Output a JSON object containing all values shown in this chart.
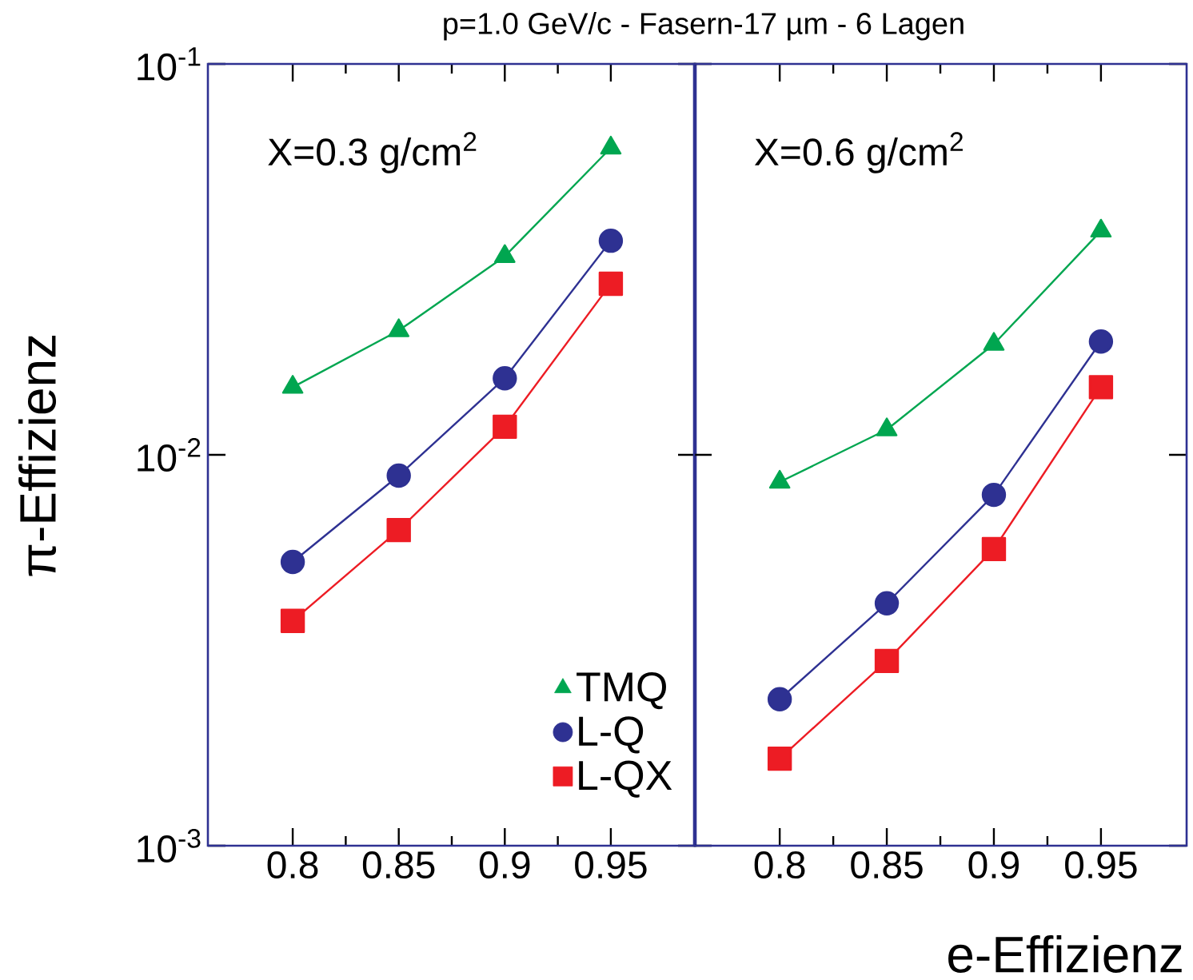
{
  "chart_data": [
    {
      "type": "line",
      "title": "p=1.0 GeV/c - Fasern-17 µm - 6 Lagen",
      "ylabel": "π-Effizienz",
      "annotations": [
        "X=0.3 g/cm$^{2}$"
      ],
      "log": "y",
      "legend": "bottom right",
      "line_style": "solid",
      "xlim": [
        0.76,
        0.99
      ],
      "xticks": [
        0.8,
        0.85,
        0.9,
        0.95
      ],
      "ylim": [
        0.001,
        0.1
      ],
      "yticks": [
        {
          "value": 0.1,
          "label": "10$^{-1}$"
        },
        {
          "value": 0.01,
          "label": "10$^{-2}$"
        },
        {
          "value": 0.001,
          "label": "10$^{-3}$"
        }
      ],
      "x": [
        0.8,
        0.85,
        0.9,
        0.95
      ],
      "series": [
        {
          "name": "TMQ",
          "color": "#00a650",
          "marker": "triangle",
          "values": [
            0.0149,
            0.0208,
            0.0322,
            0.061
          ]
        },
        {
          "name": "L-Q",
          "color": "#2e3192",
          "marker": "circle",
          "values": [
            0.00532,
            0.00885,
            0.0157,
            0.0353
          ]
        },
        {
          "name": "L-QX",
          "color": "#ed1c24",
          "marker": "square",
          "values": [
            0.00376,
            0.00642,
            0.0118,
            0.0274
          ]
        }
      ]
    },
    {
      "type": "line",
      "xlabel": "e-Effizienz",
      "annotations": [
        "X=0.6 g/cm$^{2}$"
      ],
      "log": "y",
      "tick_labels": "x",
      "line_style": "solid",
      "xlim": [
        0.76,
        0.99
      ],
      "xticks": [
        0.8,
        0.85,
        0.9,
        0.95
      ],
      "ylim": [
        0.001,
        0.1
      ],
      "yticks": [
        {
          "value": 0.1,
          "label": null
        },
        {
          "value": 0.01,
          "label": null
        },
        {
          "value": 0.001,
          "label": null
        }
      ],
      "x": [
        0.8,
        0.85,
        0.9,
        0.95
      ],
      "series": [
        {
          "color": "#00a650",
          "marker": "triangle",
          "values": [
            0.00852,
            0.0116,
            0.0192,
            0.0374
          ]
        },
        {
          "color": "#2e3192",
          "marker": "circle",
          "values": [
            0.00237,
            0.00417,
            0.0079,
            0.0195
          ]
        },
        {
          "color": "#ed1c24",
          "marker": "square",
          "values": [
            0.00167,
            0.00297,
            0.00574,
            0.0149
          ]
        }
      ]
    }
  ]
}
